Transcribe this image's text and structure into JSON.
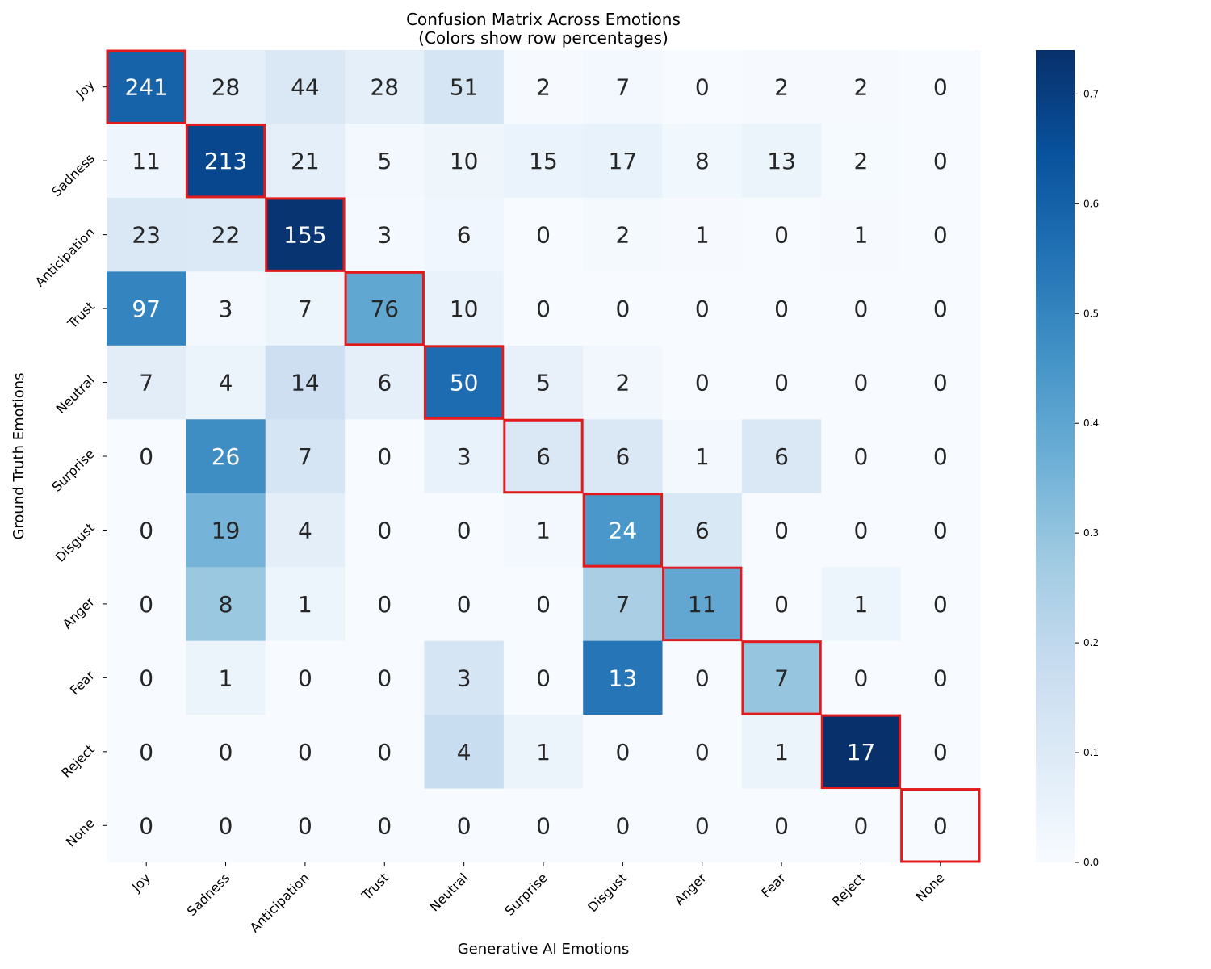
{
  "chart_data": {
    "type": "heatmap",
    "title": "Confusion Matrix Across Emotions",
    "subtitle": "(Colors show row percentages)",
    "xlabel": "Generative AI Emotions",
    "ylabel": "Ground Truth Emotions",
    "x_categories": [
      "Joy",
      "Sadness",
      "Anticipation",
      "Trust",
      "Neutral",
      "Surprise",
      "Disgust",
      "Anger",
      "Fear",
      "Reject",
      "None"
    ],
    "y_categories": [
      "Joy",
      "Sadness",
      "Anticipation",
      "Trust",
      "Neutral",
      "Surprise",
      "Disgust",
      "Anger",
      "Fear",
      "Reject",
      "None"
    ],
    "values": [
      [
        241,
        28,
        44,
        28,
        51,
        2,
        7,
        0,
        2,
        2,
        0
      ],
      [
        11,
        213,
        21,
        5,
        10,
        15,
        17,
        8,
        13,
        2,
        0
      ],
      [
        23,
        22,
        155,
        3,
        6,
        0,
        2,
        1,
        0,
        1,
        0
      ],
      [
        97,
        3,
        7,
        76,
        10,
        0,
        0,
        0,
        0,
        0,
        0
      ],
      [
        7,
        4,
        14,
        6,
        50,
        5,
        2,
        0,
        0,
        0,
        0
      ],
      [
        0,
        26,
        7,
        0,
        3,
        6,
        6,
        1,
        6,
        0,
        0
      ],
      [
        0,
        19,
        4,
        0,
        0,
        1,
        24,
        6,
        0,
        0,
        0
      ],
      [
        0,
        8,
        1,
        0,
        0,
        0,
        7,
        11,
        0,
        1,
        0
      ],
      [
        0,
        1,
        0,
        0,
        3,
        0,
        13,
        0,
        7,
        0,
        0
      ],
      [
        0,
        0,
        0,
        0,
        4,
        1,
        0,
        0,
        1,
        17,
        0
      ],
      [
        0,
        0,
        0,
        0,
        0,
        0,
        0,
        0,
        0,
        0,
        0
      ]
    ],
    "color_scale": "row-percentage",
    "colorbar": {
      "min": 0.0,
      "max": 0.74,
      "ticks": [
        "0.0",
        "0.1",
        "0.2",
        "0.3",
        "0.4",
        "0.5",
        "0.6",
        "0.7"
      ],
      "tick_values": [
        0.0,
        0.1,
        0.2,
        0.3,
        0.4,
        0.5,
        0.6,
        0.7
      ]
    },
    "colormap": [
      "#f7fbff",
      "#deebf7",
      "#c6dbef",
      "#9ecae1",
      "#6baed6",
      "#4292c6",
      "#2171b5",
      "#08519c",
      "#08306b"
    ],
    "diagonal_highlight_color": "#e31a1c"
  }
}
